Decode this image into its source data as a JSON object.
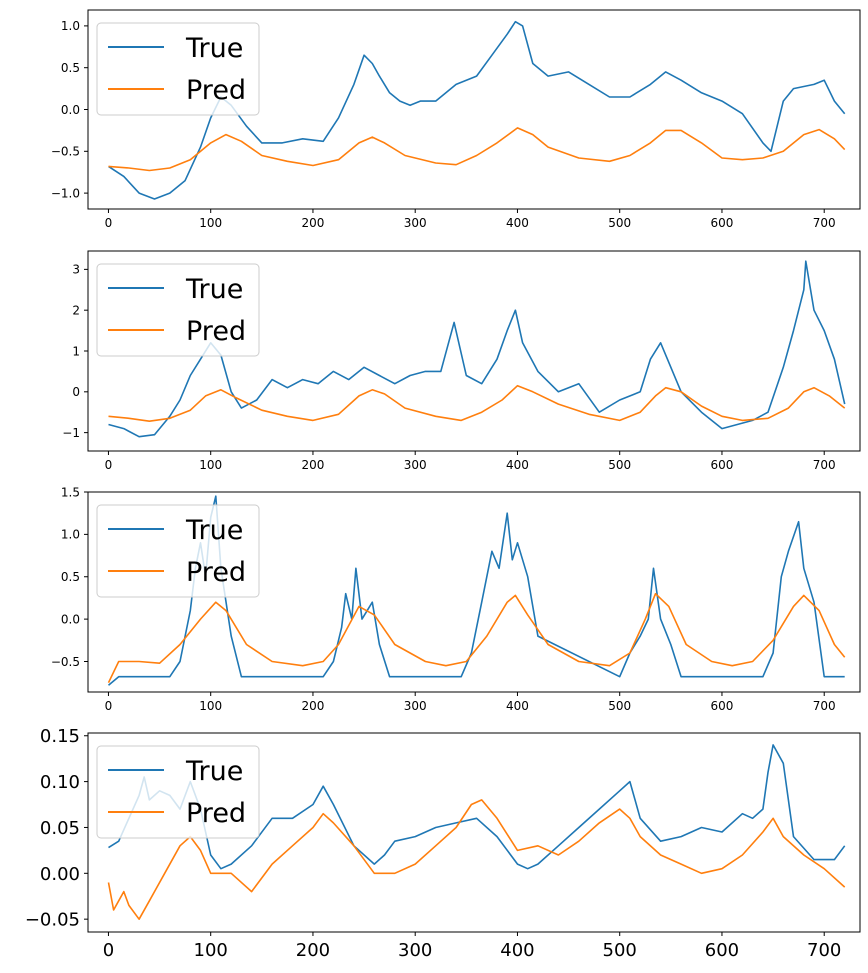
{
  "colors": {
    "true": "#1f77b4",
    "pred": "#ff7f0e"
  },
  "chart_data": [
    {
      "type": "line",
      "title": "",
      "xlabel": "",
      "ylabel": "",
      "xlim": [
        -20,
        735
      ],
      "ylim": [
        -1.19,
        1.19
      ],
      "xticks": [
        0,
        100,
        200,
        300,
        400,
        500,
        600,
        700
      ],
      "xtick_labels": [
        "0",
        "100",
        "200",
        "300",
        "400",
        "500",
        "600",
        "700"
      ],
      "yticks": [
        -1.0,
        -0.5,
        0.0,
        0.5,
        1.0
      ],
      "ytick_labels": [
        "−1.0",
        "−0.5",
        "0.0",
        "0.5",
        "1.0"
      ],
      "legend": {
        "placement": "upper-left",
        "entries": [
          "True",
          "Pred"
        ]
      },
      "series": [
        {
          "name": "True",
          "x": [
            0,
            15,
            30,
            45,
            60,
            75,
            90,
            100,
            110,
            120,
            135,
            150,
            170,
            190,
            210,
            225,
            240,
            250,
            258,
            265,
            275,
            285,
            295,
            305,
            320,
            340,
            360,
            375,
            390,
            398,
            405,
            415,
            430,
            450,
            470,
            490,
            510,
            530,
            545,
            560,
            580,
            600,
            620,
            640,
            648,
            660,
            670,
            690,
            700,
            710,
            720
          ],
          "values": [
            -0.68,
            -0.8,
            -1.0,
            -1.07,
            -1.0,
            -0.85,
            -0.45,
            -0.1,
            0.15,
            0.05,
            -0.2,
            -0.4,
            -0.4,
            -0.35,
            -0.38,
            -0.1,
            0.3,
            0.65,
            0.55,
            0.4,
            0.2,
            0.1,
            0.05,
            0.1,
            0.1,
            0.3,
            0.4,
            0.65,
            0.9,
            1.05,
            1.0,
            0.55,
            0.4,
            0.45,
            0.3,
            0.15,
            0.15,
            0.3,
            0.45,
            0.35,
            0.2,
            0.1,
            -0.05,
            -0.4,
            -0.5,
            0.1,
            0.25,
            0.3,
            0.35,
            0.1,
            -0.05
          ]
        },
        {
          "name": "Pred",
          "x": [
            0,
            20,
            40,
            60,
            80,
            100,
            115,
            130,
            150,
            175,
            200,
            225,
            245,
            258,
            270,
            290,
            320,
            340,
            360,
            380,
            400,
            415,
            430,
            460,
            490,
            510,
            530,
            545,
            560,
            580,
            600,
            620,
            640,
            660,
            680,
            695,
            710,
            720
          ],
          "values": [
            -0.68,
            -0.7,
            -0.73,
            -0.7,
            -0.6,
            -0.4,
            -0.3,
            -0.38,
            -0.55,
            -0.62,
            -0.67,
            -0.6,
            -0.4,
            -0.33,
            -0.4,
            -0.55,
            -0.64,
            -0.66,
            -0.55,
            -0.4,
            -0.22,
            -0.3,
            -0.45,
            -0.58,
            -0.62,
            -0.55,
            -0.4,
            -0.25,
            -0.25,
            -0.4,
            -0.58,
            -0.6,
            -0.58,
            -0.5,
            -0.3,
            -0.24,
            -0.35,
            -0.48
          ]
        }
      ]
    },
    {
      "type": "line",
      "title": "",
      "xlabel": "",
      "ylabel": "",
      "xlim": [
        -20,
        735
      ],
      "ylim": [
        -1.45,
        3.45
      ],
      "xticks": [
        0,
        100,
        200,
        300,
        400,
        500,
        600,
        700
      ],
      "xtick_labels": [
        "0",
        "100",
        "200",
        "300",
        "400",
        "500",
        "600",
        "700"
      ],
      "yticks": [
        -1,
        0,
        1,
        2,
        3
      ],
      "ytick_labels": [
        "−1",
        "0",
        "1",
        "2",
        "3"
      ],
      "legend": {
        "placement": "upper-left",
        "entries": [
          "True",
          "Pred"
        ]
      },
      "series": [
        {
          "name": "True",
          "x": [
            0,
            15,
            30,
            45,
            60,
            70,
            80,
            90,
            100,
            110,
            120,
            130,
            145,
            160,
            175,
            190,
            205,
            220,
            235,
            250,
            265,
            280,
            295,
            310,
            325,
            338,
            350,
            365,
            380,
            390,
            398,
            405,
            420,
            440,
            460,
            480,
            500,
            520,
            530,
            540,
            560,
            580,
            600,
            615,
            630,
            645,
            660,
            670,
            680,
            682,
            690,
            700,
            710,
            720
          ],
          "values": [
            -0.8,
            -0.9,
            -1.1,
            -1.05,
            -0.6,
            -0.2,
            0.4,
            0.8,
            1.2,
            0.9,
            0.0,
            -0.4,
            -0.2,
            0.3,
            0.1,
            0.3,
            0.2,
            0.5,
            0.3,
            0.6,
            0.4,
            0.2,
            0.4,
            0.5,
            0.5,
            1.7,
            0.4,
            0.2,
            0.8,
            1.5,
            2.0,
            1.2,
            0.5,
            0.0,
            0.2,
            -0.5,
            -0.2,
            0.0,
            0.8,
            1.2,
            0.0,
            -0.5,
            -0.9,
            -0.8,
            -0.7,
            -0.5,
            0.6,
            1.5,
            2.5,
            3.2,
            2.0,
            1.5,
            0.8,
            -0.3
          ]
        },
        {
          "name": "Pred",
          "x": [
            0,
            20,
            40,
            60,
            80,
            95,
            110,
            125,
            150,
            175,
            200,
            225,
            245,
            258,
            270,
            290,
            320,
            345,
            365,
            385,
            400,
            415,
            440,
            470,
            500,
            520,
            535,
            545,
            560,
            580,
            600,
            620,
            645,
            665,
            680,
            690,
            705,
            720
          ],
          "values": [
            -0.6,
            -0.65,
            -0.72,
            -0.65,
            -0.45,
            -0.1,
            0.05,
            -0.15,
            -0.45,
            -0.6,
            -0.7,
            -0.55,
            -0.1,
            0.05,
            -0.05,
            -0.4,
            -0.6,
            -0.7,
            -0.5,
            -0.2,
            0.15,
            0.0,
            -0.3,
            -0.55,
            -0.7,
            -0.5,
            -0.1,
            0.1,
            0.0,
            -0.35,
            -0.6,
            -0.7,
            -0.65,
            -0.4,
            0.0,
            0.1,
            -0.1,
            -0.4
          ]
        }
      ]
    },
    {
      "type": "line",
      "title": "",
      "xlabel": "",
      "ylabel": "",
      "xlim": [
        -20,
        735
      ],
      "ylim": [
        -0.86,
        1.5
      ],
      "xticks": [
        0,
        100,
        200,
        300,
        400,
        500,
        600,
        700
      ],
      "xtick_labels": [
        "0",
        "100",
        "200",
        "300",
        "400",
        "500",
        "600",
        "700"
      ],
      "yticks": [
        -0.5,
        0.0,
        0.5,
        1.0,
        1.5
      ],
      "ytick_labels": [
        "−0.5",
        "0.0",
        "0.5",
        "1.0",
        "1.5"
      ],
      "legend": {
        "placement": "upper-left",
        "entries": [
          "True",
          "Pred"
        ]
      },
      "series": [
        {
          "name": "True",
          "x": [
            0,
            10,
            60,
            70,
            80,
            85,
            90,
            95,
            100,
            105,
            110,
            120,
            130,
            210,
            220,
            228,
            232,
            238,
            242,
            248,
            258,
            265,
            275,
            345,
            355,
            365,
            375,
            382,
            390,
            395,
            400,
            410,
            420,
            500,
            510,
            520,
            528,
            533,
            540,
            550,
            560,
            640,
            650,
            658,
            665,
            675,
            680,
            690,
            700,
            720
          ],
          "values": [
            -0.78,
            -0.68,
            -0.68,
            -0.5,
            0.1,
            0.6,
            0.9,
            0.5,
            1.2,
            1.45,
            0.6,
            -0.2,
            -0.68,
            -0.68,
            -0.5,
            -0.1,
            0.3,
            0.0,
            0.6,
            0.0,
            0.2,
            -0.3,
            -0.68,
            -0.68,
            -0.4,
            0.2,
            0.8,
            0.6,
            1.25,
            0.7,
            0.9,
            0.5,
            -0.2,
            -0.68,
            -0.4,
            -0.2,
            0.0,
            0.6,
            0.0,
            -0.3,
            -0.68,
            -0.68,
            -0.4,
            0.5,
            0.8,
            1.15,
            0.6,
            0.2,
            -0.68,
            -0.68
          ]
        },
        {
          "name": "Pred",
          "x": [
            0,
            10,
            30,
            50,
            70,
            90,
            105,
            115,
            135,
            160,
            190,
            210,
            225,
            245,
            260,
            280,
            310,
            330,
            350,
            370,
            390,
            398,
            410,
            430,
            460,
            490,
            510,
            525,
            535,
            548,
            565,
            590,
            610,
            630,
            650,
            670,
            680,
            695,
            710,
            720
          ],
          "values": [
            -0.75,
            -0.5,
            -0.5,
            -0.52,
            -0.3,
            0.0,
            0.2,
            0.1,
            -0.3,
            -0.5,
            -0.55,
            -0.5,
            -0.3,
            0.15,
            0.05,
            -0.3,
            -0.5,
            -0.55,
            -0.5,
            -0.2,
            0.2,
            0.28,
            0.05,
            -0.3,
            -0.5,
            -0.55,
            -0.4,
            0.0,
            0.3,
            0.15,
            -0.3,
            -0.5,
            -0.55,
            -0.5,
            -0.25,
            0.15,
            0.28,
            0.1,
            -0.3,
            -0.45
          ]
        }
      ]
    },
    {
      "type": "line",
      "title": "",
      "xlabel": "",
      "ylabel": "",
      "xlim": [
        -20,
        735
      ],
      "ylim": [
        -0.064,
        0.153
      ],
      "xticks": [
        0,
        100,
        200,
        300,
        400,
        500,
        600,
        700
      ],
      "xtick_labels": [
        "0",
        "100",
        "200",
        "300",
        "400",
        "500",
        "600",
        "700"
      ],
      "yticks": [
        -0.05,
        0.0,
        0.05,
        0.1,
        0.15
      ],
      "ytick_labels": [
        "−0.05",
        "0.00",
        "0.05",
        "0.10",
        "0.15"
      ],
      "legend": {
        "placement": "upper-left",
        "entries": [
          "True",
          "Pred"
        ]
      },
      "series": [
        {
          "name": "True",
          "x": [
            0,
            10,
            20,
            30,
            35,
            40,
            50,
            60,
            70,
            80,
            90,
            100,
            110,
            120,
            140,
            160,
            180,
            200,
            210,
            220,
            240,
            260,
            270,
            280,
            300,
            320,
            340,
            360,
            380,
            400,
            410,
            420,
            440,
            460,
            480,
            500,
            510,
            520,
            540,
            560,
            580,
            600,
            620,
            630,
            640,
            645,
            650,
            660,
            670,
            690,
            710,
            720
          ],
          "values": [
            0.028,
            0.035,
            0.06,
            0.085,
            0.105,
            0.08,
            0.09,
            0.085,
            0.07,
            0.1,
            0.07,
            0.02,
            0.005,
            0.01,
            0.03,
            0.06,
            0.06,
            0.075,
            0.095,
            0.075,
            0.03,
            0.01,
            0.02,
            0.035,
            0.04,
            0.05,
            0.055,
            0.06,
            0.04,
            0.01,
            0.005,
            0.01,
            0.03,
            0.05,
            0.07,
            0.09,
            0.1,
            0.06,
            0.035,
            0.04,
            0.05,
            0.045,
            0.065,
            0.06,
            0.07,
            0.11,
            0.14,
            0.12,
            0.04,
            0.015,
            0.015,
            0.03
          ]
        },
        {
          "name": "Pred",
          "x": [
            0,
            5,
            10,
            15,
            20,
            30,
            40,
            55,
            70,
            80,
            90,
            100,
            120,
            140,
            160,
            180,
            200,
            210,
            220,
            240,
            260,
            280,
            300,
            320,
            340,
            355,
            365,
            380,
            400,
            420,
            440,
            460,
            480,
            500,
            510,
            520,
            540,
            560,
            580,
            600,
            620,
            640,
            650,
            660,
            680,
            700,
            720
          ],
          "values": [
            -0.01,
            -0.04,
            -0.03,
            -0.02,
            -0.035,
            -0.05,
            -0.03,
            0.0,
            0.03,
            0.04,
            0.025,
            0.0,
            0.0,
            -0.02,
            0.01,
            0.03,
            0.05,
            0.065,
            0.055,
            0.03,
            0.0,
            0.0,
            0.01,
            0.03,
            0.05,
            0.075,
            0.08,
            0.06,
            0.025,
            0.03,
            0.02,
            0.035,
            0.055,
            0.07,
            0.06,
            0.04,
            0.02,
            0.01,
            0.0,
            0.005,
            0.02,
            0.045,
            0.06,
            0.04,
            0.02,
            0.005,
            -0.015
          ]
        }
      ]
    }
  ]
}
